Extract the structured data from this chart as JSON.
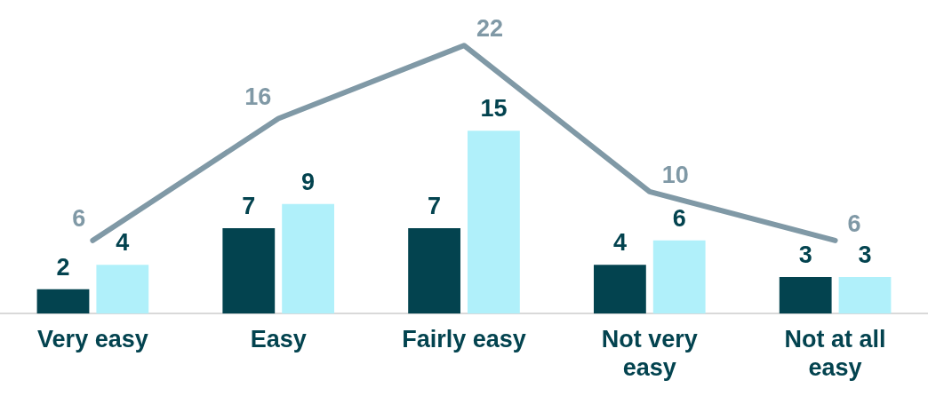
{
  "chart_data": {
    "type": "bar",
    "categories": [
      "Very easy",
      "Easy",
      "Fairly easy",
      "Not very easy",
      "Not at all easy"
    ],
    "series": [
      {
        "color": "#03434f",
        "values": [
          2,
          7,
          7,
          4,
          3
        ]
      },
      {
        "color": "#b0f0fa",
        "values": [
          4,
          9,
          15,
          6,
          3
        ]
      },
      {
        "type": "line",
        "color": "#8099a6",
        "values": [
          6,
          16,
          22,
          10,
          6
        ]
      }
    ],
    "data_labels": true,
    "legend": false,
    "grid": false,
    "tick_labels": "x",
    "marker": "none"
  }
}
